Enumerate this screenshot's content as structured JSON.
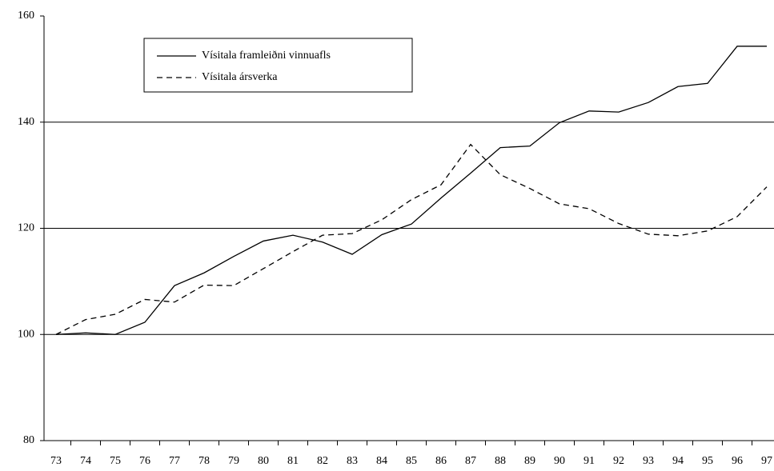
{
  "chart_data": {
    "type": "line",
    "categories": [
      "73",
      "74",
      "75",
      "76",
      "77",
      "78",
      "79",
      "80",
      "81",
      "82",
      "83",
      "84",
      "85",
      "86",
      "87",
      "88",
      "89",
      "90",
      "91",
      "92",
      "93",
      "94",
      "95",
      "96",
      "97"
    ],
    "series": [
      {
        "name": "Vísitala framleiðni vinnuafls",
        "color": "#000000",
        "dash": "solid",
        "values": [
          100,
          100.3,
          100,
          102.3,
          109.2,
          111.6,
          114.7,
          117.6,
          118.7,
          117.4,
          115.1,
          118.8,
          120.8,
          125.7,
          130.4,
          135.2,
          135.5,
          139.9,
          142.1,
          141.9,
          143.7,
          146.7,
          147.3,
          154.3,
          154.3
        ]
      },
      {
        "name": "Vísitala  ársverka",
        "color": "#000000",
        "dash": "dashed",
        "values": [
          100,
          102.8,
          103.8,
          106.6,
          106.1,
          109.3,
          109.2,
          112.4,
          115.6,
          118.7,
          119,
          121.6,
          125.4,
          128.2,
          135.8,
          130.1,
          127.5,
          124.6,
          123.7,
          120.9,
          118.9,
          118.6,
          119.5,
          122.2,
          127.8
        ]
      }
    ],
    "ylim": [
      80,
      160
    ],
    "yticks": [
      80,
      100,
      120,
      140,
      160
    ],
    "grid": true
  }
}
